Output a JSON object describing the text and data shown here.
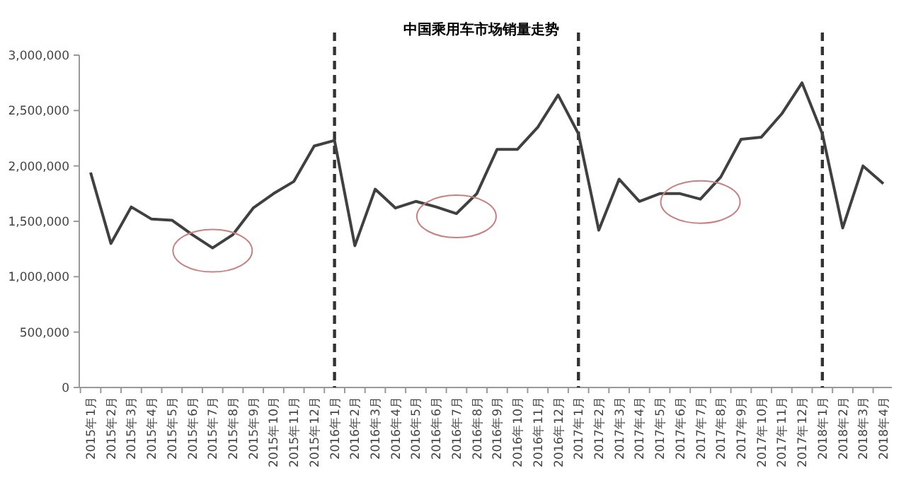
{
  "chart_data": {
    "type": "line",
    "title": "中国乘用车市场销量走势",
    "categories": [
      "2015年1月",
      "2015年2月",
      "2015年3月",
      "2015年4月",
      "2015年5月",
      "2015年6月",
      "2015年7月",
      "2015年8月",
      "2015年9月",
      "2015年10月",
      "2015年11月",
      "2015年12月",
      "2016年1月",
      "2016年2月",
      "2016年3月",
      "2016年4月",
      "2016年5月",
      "2016年6月",
      "2016年7月",
      "2016年8月",
      "2016年9月",
      "2016年10月",
      "2016年11月",
      "2016年12月",
      "2017年1月",
      "2017年2月",
      "2017年3月",
      "2017年4月",
      "2017年5月",
      "2017年6月",
      "2017年7月",
      "2017年8月",
      "2017年9月",
      "2017年10月",
      "2017年11月",
      "2017年12月",
      "2018年1月",
      "2018年2月",
      "2018年3月",
      "2018年4月"
    ],
    "series": [
      {
        "color": "#404040",
        "values": [
          1940000,
          1300000,
          1630000,
          1520000,
          1510000,
          1380000,
          1260000,
          1380000,
          1620000,
          1750000,
          1860000,
          2180000,
          2230000,
          1280000,
          1790000,
          1620000,
          1680000,
          1630000,
          1570000,
          1750000,
          2150000,
          2150000,
          2350000,
          2640000,
          2290000,
          1420000,
          1880000,
          1680000,
          1750000,
          1750000,
          1700000,
          1900000,
          2240000,
          2260000,
          2470000,
          2750000,
          2290000,
          1440000,
          2000000,
          1840000
        ]
      }
    ],
    "ylim": [
      0,
      3000000
    ],
    "yticks": [
      {
        "value": 0,
        "label": "0"
      },
      {
        "value": 500000,
        "label": "500,000"
      },
      {
        "value": 1000000,
        "label": "1,000,000"
      },
      {
        "value": 1500000,
        "label": "1,500,000"
      },
      {
        "value": 2000000,
        "label": "2,000,000"
      },
      {
        "value": 2500000,
        "label": "2,500,000"
      },
      {
        "value": 3000000,
        "label": "3,000,000"
      }
    ],
    "ref_lines": [
      {
        "axis": "x",
        "value": "2016年1月",
        "color": "#333333",
        "line_style": "dashed"
      },
      {
        "axis": "x",
        "value": "2017年1月",
        "color": "#333333",
        "line_style": "dashed"
      },
      {
        "axis": "x",
        "value": "2018年1月",
        "color": "#333333",
        "line_style": "dashed"
      }
    ],
    "grid": false,
    "marker": "none",
    "line_style": "solid"
  }
}
